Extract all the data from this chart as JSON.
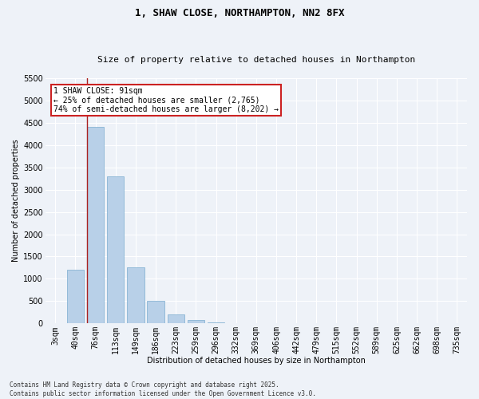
{
  "title1": "1, SHAW CLOSE, NORTHAMPTON, NN2 8FX",
  "title2": "Size of property relative to detached houses in Northampton",
  "xlabel": "Distribution of detached houses by size in Northampton",
  "ylabel": "Number of detached properties",
  "categories": [
    "3sqm",
    "40sqm",
    "76sqm",
    "113sqm",
    "149sqm",
    "186sqm",
    "223sqm",
    "259sqm",
    "296sqm",
    "332sqm",
    "369sqm",
    "406sqm",
    "442sqm",
    "479sqm",
    "515sqm",
    "552sqm",
    "589sqm",
    "625sqm",
    "662sqm",
    "698sqm",
    "735sqm"
  ],
  "values": [
    0,
    1200,
    4400,
    3300,
    1250,
    500,
    200,
    80,
    30,
    0,
    0,
    0,
    0,
    0,
    0,
    0,
    0,
    0,
    0,
    0,
    0
  ],
  "bar_color": "#b8d0e8",
  "bar_edge_color": "#7aabcf",
  "vline_color": "#aa2222",
  "vline_x": 2.0,
  "ylim": [
    0,
    5500
  ],
  "yticks": [
    0,
    500,
    1000,
    1500,
    2000,
    2500,
    3000,
    3500,
    4000,
    4500,
    5000,
    5500
  ],
  "annotation_text": "1 SHAW CLOSE: 91sqm\n← 25% of detached houses are smaller (2,765)\n74% of semi-detached houses are larger (8,202) →",
  "annotation_box_color": "#ffffff",
  "annotation_border_color": "#cc2222",
  "footer1": "Contains HM Land Registry data © Crown copyright and database right 2025.",
  "footer2": "Contains public sector information licensed under the Open Government Licence v3.0.",
  "bg_color": "#eef2f8",
  "grid_color": "#ffffff",
  "title1_fontsize": 9,
  "title2_fontsize": 8,
  "axis_label_fontsize": 7,
  "tick_fontsize": 7,
  "annotation_fontsize": 7,
  "footer_fontsize": 5.5
}
